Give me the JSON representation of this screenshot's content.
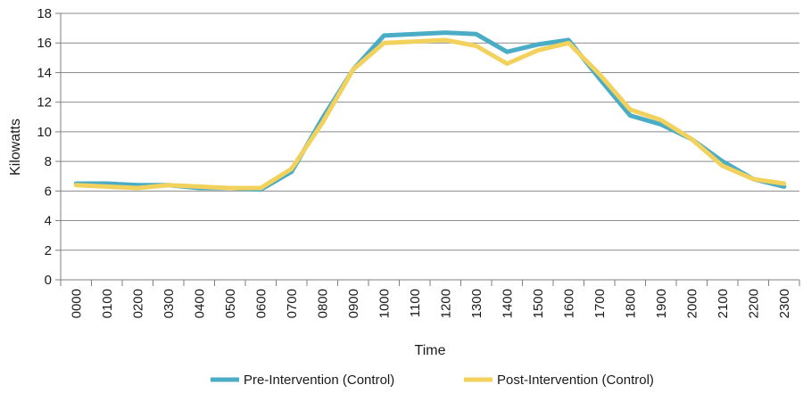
{
  "chart_data": {
    "type": "line",
    "xlabel": "Time",
    "ylabel": "Kilowatts",
    "ylim": [
      0,
      18
    ],
    "y_ticks": [
      0,
      2,
      4,
      6,
      8,
      10,
      12,
      14,
      16,
      18
    ],
    "grid": "horizontal",
    "legend_position": "bottom",
    "categories": [
      "0000",
      "0100",
      "0200",
      "0300",
      "0400",
      "0500",
      "0600",
      "0700",
      "0800",
      "0900",
      "1000",
      "1100",
      "1200",
      "1300",
      "1400",
      "1500",
      "1600",
      "1700",
      "1800",
      "1900",
      "2000",
      "2100",
      "2200",
      "2300"
    ],
    "series": [
      {
        "name": "Pre-Intervention (Control)",
        "color": "#4bacc6",
        "values": [
          6.5,
          6.5,
          6.4,
          6.4,
          6.2,
          6.2,
          6.1,
          7.3,
          10.9,
          14.2,
          16.5,
          16.6,
          16.7,
          16.6,
          15.4,
          15.9,
          16.2,
          13.6,
          11.1,
          10.5,
          9.5,
          8.0,
          6.8,
          6.3
        ]
      },
      {
        "name": "Post-Intervention (Control)",
        "color": "#f2d25c",
        "values": [
          6.4,
          6.3,
          6.2,
          6.4,
          6.3,
          6.2,
          6.2,
          7.5,
          10.6,
          14.2,
          16.0,
          16.1,
          16.2,
          15.8,
          14.6,
          15.5,
          16.0,
          13.9,
          11.5,
          10.8,
          9.5,
          7.7,
          6.8,
          6.5
        ]
      }
    ]
  }
}
